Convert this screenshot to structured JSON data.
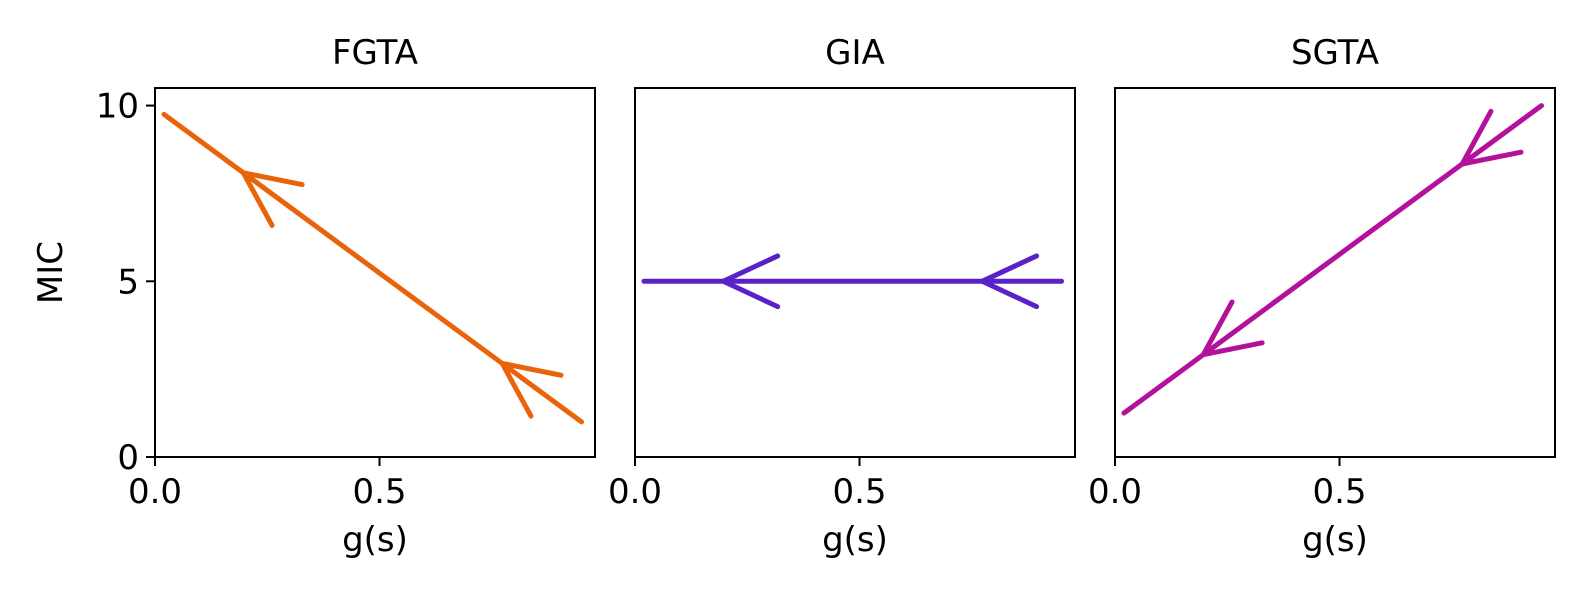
{
  "chart_data": [
    {
      "type": "line",
      "title": "FGTA",
      "xlabel": "g(s)",
      "ylabel": "MIC",
      "xlim": [
        0,
        0.98
      ],
      "ylim": [
        0,
        10.5
      ],
      "xticks": [
        0,
        0.5
      ],
      "xtick_labels": [
        "0.0",
        "0.5"
      ],
      "yticks": [
        0,
        5,
        10
      ],
      "ytick_labels": [
        "0",
        "5",
        "10"
      ],
      "grid": false,
      "color": "#E8630A",
      "series": [
        {
          "x": [
            0.02,
            0.95
          ],
          "y": [
            9.75,
            1.0
          ],
          "arrows": [
            0.19,
            0.81
          ],
          "arrow_direction": "backward"
        }
      ]
    },
    {
      "type": "line",
      "title": "GIA",
      "xlabel": "g(s)",
      "ylabel": "",
      "xlim": [
        0,
        0.98
      ],
      "ylim": [
        0,
        10.5
      ],
      "xticks": [
        0,
        0.5
      ],
      "xtick_labels": [
        "0.0",
        "0.5"
      ],
      "yticks": [],
      "ytick_labels": [],
      "grid": false,
      "color": "#5B21C8",
      "series": [
        {
          "x": [
            0.02,
            0.95
          ],
          "y": [
            5.0,
            5.0
          ],
          "arrows": [
            0.19,
            0.81
          ],
          "arrow_direction": "backward"
        }
      ]
    },
    {
      "type": "line",
      "title": "SGTA",
      "xlabel": "g(s)",
      "ylabel": "",
      "xlim": [
        0,
        0.98
      ],
      "ylim": [
        0,
        10.5
      ],
      "xticks": [
        0,
        0.5
      ],
      "xtick_labels": [
        "0.0",
        "0.5"
      ],
      "yticks": [],
      "ytick_labels": [],
      "grid": false,
      "color": "#B3119B",
      "series": [
        {
          "x": [
            0.02,
            0.95
          ],
          "y": [
            1.25,
            10.0
          ],
          "arrows": [
            0.19,
            0.81
          ],
          "arrow_direction": "backward"
        }
      ]
    }
  ]
}
